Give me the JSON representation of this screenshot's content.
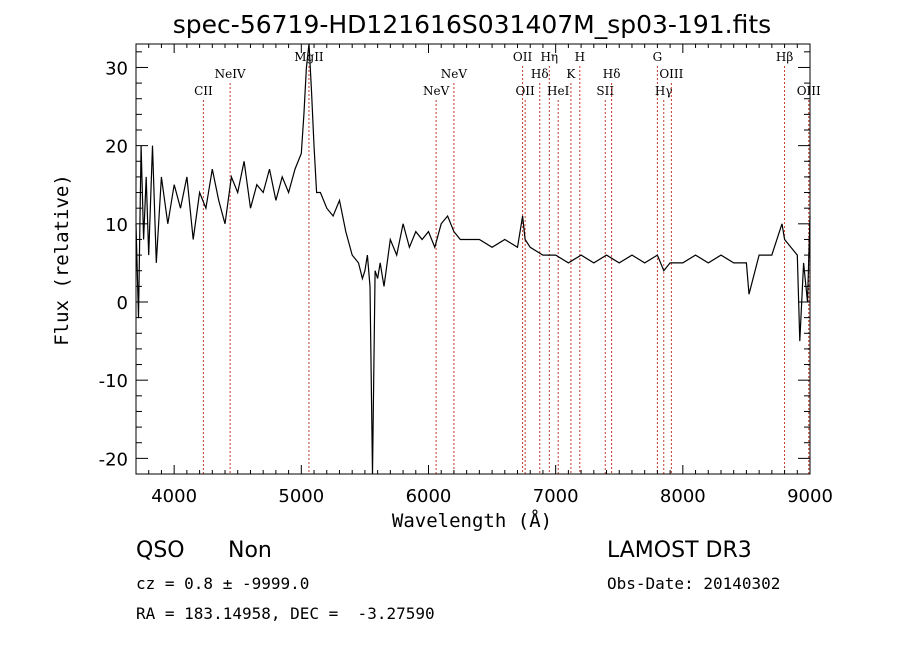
{
  "chart_data": {
    "type": "line",
    "title": "spec-56719-HD121616S031407M_sp03-191.fits",
    "xlabel": "Wavelength (Å)",
    "ylabel": "Flux (relative)",
    "xlim": [
      3700,
      9000
    ],
    "ylim": [
      -22,
      33
    ],
    "xticks": [
      4000,
      5000,
      6000,
      7000,
      8000,
      9000
    ],
    "yticks": [
      -20,
      -10,
      0,
      10,
      20,
      30
    ],
    "spectrum": {
      "name": "flux",
      "color": "#000000",
      "x": [
        3700,
        3720,
        3740,
        3760,
        3780,
        3800,
        3830,
        3860,
        3900,
        3950,
        4000,
        4050,
        4100,
        4150,
        4200,
        4250,
        4300,
        4350,
        4400,
        4450,
        4500,
        4550,
        4600,
        4650,
        4700,
        4750,
        4800,
        4850,
        4900,
        4950,
        5000,
        5020,
        5040,
        5060,
        5080,
        5100,
        5120,
        5150,
        5200,
        5250,
        5300,
        5350,
        5400,
        5450,
        5480,
        5500,
        5520,
        5540,
        5560,
        5580,
        5600,
        5620,
        5650,
        5700,
        5750,
        5800,
        5850,
        5900,
        5950,
        6000,
        6050,
        6100,
        6150,
        6200,
        6250,
        6300,
        6400,
        6500,
        6600,
        6700,
        6740,
        6760,
        6800,
        6900,
        7000,
        7100,
        7200,
        7300,
        7400,
        7500,
        7600,
        7700,
        7800,
        7850,
        7900,
        8000,
        8100,
        8200,
        8300,
        8400,
        8500,
        8520,
        8600,
        8700,
        8780,
        8800,
        8850,
        8900,
        8920,
        8950,
        8980,
        9000
      ],
      "y": [
        10,
        -2,
        20,
        8,
        16,
        6,
        20,
        5,
        16,
        10,
        15,
        12,
        16,
        8,
        14,
        12,
        17,
        13,
        10,
        16,
        14,
        18,
        12,
        15,
        14,
        17,
        13,
        16,
        14,
        17,
        19,
        24,
        30,
        33,
        27,
        20,
        14,
        14,
        12,
        11,
        13,
        9,
        6,
        5,
        3,
        4,
        6,
        2,
        -22,
        4,
        3,
        5,
        2,
        8,
        6,
        10,
        7,
        9,
        8,
        9,
        7,
        10,
        11,
        9,
        8,
        8,
        8,
        7,
        8,
        7,
        11,
        8,
        7,
        6,
        6,
        5,
        6,
        5,
        6,
        5,
        6,
        5,
        6,
        4,
        5,
        5,
        6,
        5,
        6,
        5,
        5,
        1,
        6,
        6,
        10,
        8,
        7,
        6,
        -5,
        5,
        0,
        11
      ]
    },
    "line_markers": [
      {
        "label": "CII",
        "x": 4230,
        "row": 2
      },
      {
        "label": "NeIV",
        "x": 4440,
        "row": 1
      },
      {
        "label": "MgII",
        "x": 5060,
        "row": 0
      },
      {
        "label": "NeV",
        "x": 6060,
        "row": 2
      },
      {
        "label": "NeV",
        "x": 6200,
        "row": 1
      },
      {
        "label": "OII",
        "x": 6740,
        "row": 0
      },
      {
        "label": "OII",
        "x": 6760,
        "row": 2
      },
      {
        "label": "Hδ",
        "x": 6875,
        "row": 1
      },
      {
        "label": "Hη",
        "x": 6950,
        "row": 0
      },
      {
        "label": "HeI",
        "x": 7020,
        "row": 2
      },
      {
        "label": "K",
        "x": 7120,
        "row": 1
      },
      {
        "label": "H",
        "x": 7190,
        "row": 0
      },
      {
        "label": "SII",
        "x": 7390,
        "row": 2
      },
      {
        "label": "Hδ",
        "x": 7440,
        "row": 1
      },
      {
        "label": "G",
        "x": 7800,
        "row": 0
      },
      {
        "label": "Hγ",
        "x": 7850,
        "row": 2
      },
      {
        "label": "OIII",
        "x": 7910,
        "row": 1
      },
      {
        "label": "Hβ",
        "x": 8800,
        "row": 0
      },
      {
        "label": "OIII",
        "x": 8990,
        "row": 2
      }
    ],
    "marker_color": "#c0392b"
  },
  "info": {
    "class": "QSO",
    "subclass": "Non",
    "survey": "LAMOST DR3",
    "cz": "cz = 0.8 ± -9999.0",
    "obs_date": "Obs-Date: 20140302",
    "radec": "RA = 183.14958, DEC =  -3.27590"
  }
}
